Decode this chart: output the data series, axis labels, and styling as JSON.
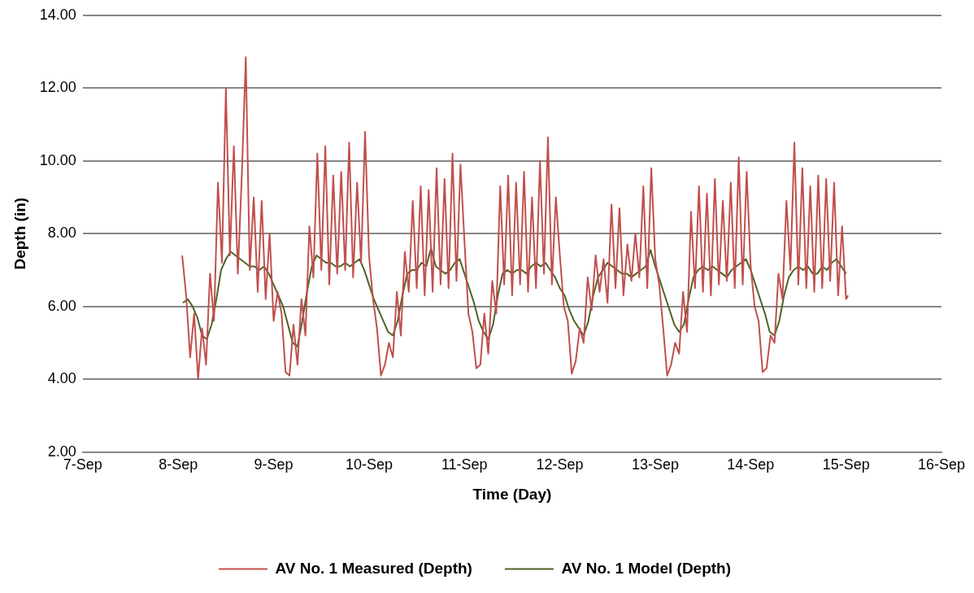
{
  "chart_data": {
    "type": "line",
    "xlabel": "Time (Day)",
    "ylabel": "Depth (in)",
    "xlim": [
      "--09-07",
      "--09-16"
    ],
    "xticks": [
      {
        "value": "--09-07",
        "label": "7-Sep"
      },
      {
        "value": "--09-08",
        "label": "8-Sep"
      },
      {
        "value": "--09-09",
        "label": "9-Sep"
      },
      {
        "value": "--09-10",
        "label": "10-Sep"
      },
      {
        "value": "--09-11",
        "label": "11-Sep"
      },
      {
        "value": "--09-12",
        "label": "12-Sep"
      },
      {
        "value": "--09-13",
        "label": "13-Sep"
      },
      {
        "value": "--09-14",
        "label": "14-Sep"
      },
      {
        "value": "--09-15",
        "label": "15-Sep"
      },
      {
        "value": "--09-16",
        "label": "16-Sep"
      }
    ],
    "ylim": [
      2,
      14
    ],
    "yticks": [
      {
        "value": 2,
        "label": "2.00"
      },
      {
        "value": 4,
        "label": "4.00"
      },
      {
        "value": 6,
        "label": "6.00"
      },
      {
        "value": 8,
        "label": "8.00"
      },
      {
        "value": 10,
        "label": "10.00"
      },
      {
        "value": 12,
        "label": "12.00"
      },
      {
        "value": 14,
        "label": "14.00"
      }
    ],
    "grid": "y",
    "legend": "bottom",
    "marker": "none",
    "line_style": "solid",
    "series": [
      {
        "name": "AV No. 1 Measured (Depth)",
        "color": "#c0504d",
        "x": [
          "--09-08T01:00",
          "--09-08T02:00",
          "--09-08T03:00",
          "--09-08T04:00",
          "--09-08T05:00",
          "--09-08T06:00",
          "--09-08T07:00",
          "--09-08T08:00",
          "--09-08T09:00",
          "--09-08T10:00",
          "--09-08T11:00",
          "--09-08T12:00",
          "--09-08T13:00",
          "--09-08T14:00",
          "--09-08T15:00",
          "--09-08T16:00",
          "--09-08T17:00",
          "--09-08T18:00",
          "--09-08T19:00",
          "--09-08T20:00",
          "--09-08T21:00",
          "--09-08T22:00",
          "--09-08T23:00",
          "--09-09T00:00",
          "--09-09T01:00",
          "--09-09T02:00",
          "--09-09T03:00",
          "--09-09T04:00",
          "--09-09T05:00",
          "--09-09T06:00",
          "--09-09T07:00",
          "--09-09T08:00",
          "--09-09T09:00",
          "--09-09T10:00",
          "--09-09T11:00",
          "--09-09T12:00",
          "--09-09T13:00",
          "--09-09T14:00",
          "--09-09T15:00",
          "--09-09T16:00",
          "--09-09T17:00",
          "--09-09T18:00",
          "--09-09T19:00",
          "--09-09T20:00",
          "--09-09T21:00",
          "--09-09T22:00",
          "--09-09T23:00",
          "--09-10T00:00",
          "--09-10T01:00",
          "--09-10T02:00",
          "--09-10T03:00",
          "--09-10T04:00",
          "--09-10T05:00",
          "--09-10T06:00",
          "--09-10T07:00",
          "--09-10T08:00",
          "--09-10T09:00",
          "--09-10T10:00",
          "--09-10T11:00",
          "--09-10T12:00",
          "--09-10T13:00",
          "--09-10T14:00",
          "--09-10T15:00",
          "--09-10T16:00",
          "--09-10T17:00",
          "--09-10T18:00",
          "--09-10T19:00",
          "--09-10T20:00",
          "--09-10T21:00",
          "--09-10T22:00",
          "--09-10T23:00",
          "--09-11T00:00",
          "--09-11T01:00",
          "--09-11T02:00",
          "--09-11T03:00",
          "--09-11T04:00",
          "--09-11T05:00",
          "--09-11T06:00",
          "--09-11T07:00",
          "--09-11T08:00",
          "--09-11T09:00",
          "--09-11T10:00",
          "--09-11T11:00",
          "--09-11T12:00",
          "--09-11T13:00",
          "--09-11T14:00",
          "--09-11T15:00",
          "--09-11T16:00",
          "--09-11T17:00",
          "--09-11T18:00",
          "--09-11T19:00",
          "--09-11T20:00",
          "--09-11T21:00",
          "--09-11T22:00",
          "--09-11T23:00",
          "--09-12T00:00",
          "--09-12T01:00",
          "--09-12T02:00",
          "--09-12T03:00",
          "--09-12T04:00",
          "--09-12T05:00",
          "--09-12T06:00",
          "--09-12T07:00",
          "--09-12T08:00",
          "--09-12T09:00",
          "--09-12T10:00",
          "--09-12T11:00",
          "--09-12T12:00",
          "--09-12T13:00",
          "--09-12T14:00",
          "--09-12T15:00",
          "--09-12T16:00",
          "--09-12T17:00",
          "--09-12T18:00",
          "--09-12T19:00",
          "--09-12T20:00",
          "--09-12T21:00",
          "--09-12T22:00",
          "--09-12T23:00",
          "--09-13T00:00",
          "--09-13T01:00",
          "--09-13T02:00",
          "--09-13T03:00",
          "--09-13T04:00",
          "--09-13T05:00",
          "--09-13T06:00",
          "--09-13T07:00",
          "--09-13T08:00",
          "--09-13T09:00",
          "--09-13T10:00",
          "--09-13T11:00",
          "--09-13T12:00",
          "--09-13T13:00",
          "--09-13T14:00",
          "--09-13T15:00",
          "--09-13T16:00",
          "--09-13T17:00",
          "--09-13T18:00",
          "--09-13T19:00",
          "--09-13T20:00",
          "--09-13T21:00",
          "--09-13T22:00",
          "--09-13T23:00",
          "--09-14T00:00",
          "--09-14T01:00",
          "--09-14T02:00",
          "--09-14T03:00",
          "--09-14T04:00",
          "--09-14T05:00",
          "--09-14T06:00",
          "--09-14T07:00",
          "--09-14T08:00",
          "--09-14T09:00",
          "--09-14T10:00",
          "--09-14T11:00",
          "--09-14T12:00",
          "--09-14T13:00",
          "--09-14T14:00",
          "--09-14T15:00",
          "--09-14T16:00",
          "--09-14T17:00",
          "--09-14T18:00",
          "--09-14T19:00",
          "--09-14T20:00",
          "--09-14T21:00",
          "--09-14T22:00",
          "--09-14T23:00",
          "--09-15T00:00",
          "--09-15T00:30"
        ],
        "values": [
          7.4,
          6.3,
          4.6,
          5.8,
          4.0,
          5.4,
          4.4,
          6.9,
          5.6,
          9.4,
          7.2,
          12.0,
          7.4,
          10.4,
          6.9,
          9.6,
          12.85,
          7.0,
          9.0,
          6.4,
          8.9,
          6.2,
          8.0,
          5.6,
          6.4,
          5.8,
          4.2,
          4.1,
          5.5,
          4.4,
          6.2,
          5.2,
          8.2,
          6.8,
          10.2,
          7.0,
          10.4,
          6.6,
          9.6,
          6.9,
          9.7,
          7.0,
          10.5,
          6.8,
          9.4,
          7.2,
          10.8,
          7.4,
          6.2,
          5.4,
          4.1,
          4.4,
          5.0,
          4.6,
          6.4,
          5.2,
          7.5,
          6.4,
          8.9,
          6.5,
          9.3,
          6.3,
          9.2,
          6.4,
          9.8,
          6.6,
          9.5,
          6.5,
          10.2,
          6.7,
          9.9,
          7.8,
          5.8,
          5.3,
          4.3,
          4.4,
          5.8,
          4.7,
          6.7,
          5.8,
          9.3,
          6.6,
          9.6,
          6.3,
          9.4,
          6.6,
          9.7,
          6.4,
          9.0,
          6.5,
          10.0,
          6.9,
          10.65,
          6.6,
          9.0,
          7.4,
          6.0,
          5.6,
          4.15,
          4.5,
          5.4,
          5.0,
          6.8,
          5.9,
          7.4,
          6.4,
          7.3,
          6.1,
          8.8,
          6.5,
          8.7,
          6.3,
          7.7,
          6.7,
          8.0,
          6.8,
          9.3,
          6.5,
          9.8,
          7.3,
          6.6,
          5.4,
          4.1,
          4.4,
          5.0,
          4.7,
          6.4,
          5.3,
          8.6,
          6.5,
          9.3,
          6.4,
          9.1,
          6.3,
          9.5,
          6.6,
          8.9,
          6.7,
          9.4,
          6.5,
          10.1,
          6.6,
          9.7,
          7.1,
          6.0,
          5.6,
          4.2,
          4.3,
          5.2,
          5.0,
          6.9,
          6.2,
          8.9,
          7.0,
          10.5,
          6.6,
          9.8,
          6.5,
          9.3,
          6.4,
          9.6,
          6.5,
          9.5,
          6.7,
          9.4,
          6.3,
          8.2,
          6.2,
          6.3
        ]
      },
      {
        "name": "AV No. 1 Model (Depth)",
        "color": "#4f6228",
        "x": [
          "--09-08T01:12",
          "--09-08T02:24",
          "--09-08T03:36",
          "--09-08T04:48",
          "--09-08T06:00",
          "--09-08T07:12",
          "--09-08T08:24",
          "--09-08T09:36",
          "--09-08T10:48",
          "--09-08T12:00",
          "--09-08T13:12",
          "--09-08T14:24",
          "--09-08T15:36",
          "--09-08T16:48",
          "--09-08T18:00",
          "--09-08T19:12",
          "--09-08T20:24",
          "--09-08T21:36",
          "--09-08T22:48",
          "--09-09T00:00",
          "--09-09T01:12",
          "--09-09T02:24",
          "--09-09T03:36",
          "--09-09T04:48",
          "--09-09T06:00",
          "--09-09T07:12",
          "--09-09T08:24",
          "--09-09T09:36",
          "--09-09T10:48",
          "--09-09T12:00",
          "--09-09T13:12",
          "--09-09T14:24",
          "--09-09T15:36",
          "--09-09T16:48",
          "--09-09T18:00",
          "--09-09T19:12",
          "--09-09T20:24",
          "--09-09T21:36",
          "--09-09T22:48",
          "--09-10T00:00",
          "--09-10T01:12",
          "--09-10T02:24",
          "--09-10T03:36",
          "--09-10T04:48",
          "--09-10T06:00",
          "--09-10T07:12",
          "--09-10T08:24",
          "--09-10T09:36",
          "--09-10T10:48",
          "--09-10T12:00",
          "--09-10T13:12",
          "--09-10T14:24",
          "--09-10T15:36",
          "--09-10T16:48",
          "--09-10T18:00",
          "--09-10T19:12",
          "--09-10T20:24",
          "--09-10T21:36",
          "--09-10T22:48",
          "--09-11T00:00",
          "--09-11T01:12",
          "--09-11T02:24",
          "--09-11T03:36",
          "--09-11T04:48",
          "--09-11T06:00",
          "--09-11T07:12",
          "--09-11T08:24",
          "--09-11T09:36",
          "--09-11T10:48",
          "--09-11T12:00",
          "--09-11T13:12",
          "--09-11T14:24",
          "--09-11T15:36",
          "--09-11T16:48",
          "--09-11T18:00",
          "--09-11T19:12",
          "--09-11T20:24",
          "--09-11T21:36",
          "--09-11T22:48",
          "--09-12T00:00",
          "--09-12T01:12",
          "--09-12T02:24",
          "--09-12T03:36",
          "--09-12T04:48",
          "--09-12T06:00",
          "--09-12T07:12",
          "--09-12T08:24",
          "--09-12T09:36",
          "--09-12T10:48",
          "--09-12T12:00",
          "--09-12T13:12",
          "--09-12T14:24",
          "--09-12T15:36",
          "--09-12T16:48",
          "--09-12T18:00",
          "--09-12T19:12",
          "--09-12T20:24",
          "--09-12T21:36",
          "--09-12T22:48",
          "--09-13T00:00",
          "--09-13T01:12",
          "--09-13T02:24",
          "--09-13T03:36",
          "--09-13T04:48",
          "--09-13T06:00",
          "--09-13T07:12",
          "--09-13T08:24",
          "--09-13T09:36",
          "--09-13T10:48",
          "--09-13T12:00",
          "--09-13T13:12",
          "--09-13T14:24",
          "--09-13T15:36",
          "--09-13T16:48",
          "--09-13T18:00",
          "--09-13T19:12",
          "--09-13T20:24",
          "--09-13T21:36",
          "--09-13T22:48",
          "--09-14T00:00",
          "--09-14T01:12",
          "--09-14T02:24",
          "--09-14T03:36",
          "--09-14T04:48",
          "--09-14T06:00",
          "--09-14T07:12",
          "--09-14T08:24",
          "--09-14T09:36",
          "--09-14T10:48",
          "--09-14T12:00",
          "--09-14T13:12",
          "--09-14T14:24",
          "--09-14T15:36",
          "--09-14T16:48",
          "--09-14T18:00",
          "--09-14T19:12",
          "--09-14T20:24",
          "--09-14T21:36",
          "--09-14T22:48",
          "--09-15T00:00"
        ],
        "values": [
          6.1,
          6.2,
          6.0,
          5.7,
          5.2,
          5.1,
          5.5,
          6.2,
          7.0,
          7.3,
          7.5,
          7.4,
          7.3,
          7.2,
          7.1,
          7.1,
          7.0,
          7.1,
          6.9,
          6.6,
          6.3,
          6.0,
          5.5,
          5.0,
          4.9,
          5.6,
          6.4,
          7.1,
          7.4,
          7.3,
          7.2,
          7.2,
          7.1,
          7.1,
          7.2,
          7.1,
          7.2,
          7.3,
          7.0,
          6.6,
          6.2,
          5.9,
          5.6,
          5.3,
          5.2,
          5.6,
          6.3,
          6.9,
          7.0,
          7.0,
          7.2,
          7.1,
          7.6,
          7.1,
          7.0,
          6.9,
          7.0,
          7.2,
          7.3,
          6.9,
          6.5,
          6.1,
          5.6,
          5.3,
          5.1,
          5.5,
          6.3,
          6.9,
          7.0,
          6.9,
          7.0,
          7.0,
          6.9,
          7.1,
          7.2,
          7.1,
          7.2,
          7.0,
          6.8,
          6.5,
          6.3,
          5.9,
          5.6,
          5.4,
          5.2,
          5.6,
          6.3,
          6.8,
          7.0,
          7.2,
          7.1,
          7.0,
          6.9,
          6.9,
          6.8,
          6.9,
          7.0,
          7.1,
          7.55,
          7.1,
          6.7,
          6.3,
          5.9,
          5.5,
          5.3,
          5.5,
          6.2,
          6.8,
          7.0,
          7.1,
          7.0,
          7.1,
          7.0,
          6.9,
          6.8,
          7.0,
          7.1,
          7.2,
          7.3,
          7.0,
          6.6,
          6.2,
          5.8,
          5.3,
          5.2,
          5.6,
          6.3,
          6.8,
          7.0,
          7.1,
          7.0,
          7.1,
          6.9,
          6.9,
          7.1,
          7.0,
          7.2,
          7.3,
          7.1,
          6.9
        ]
      }
    ]
  }
}
